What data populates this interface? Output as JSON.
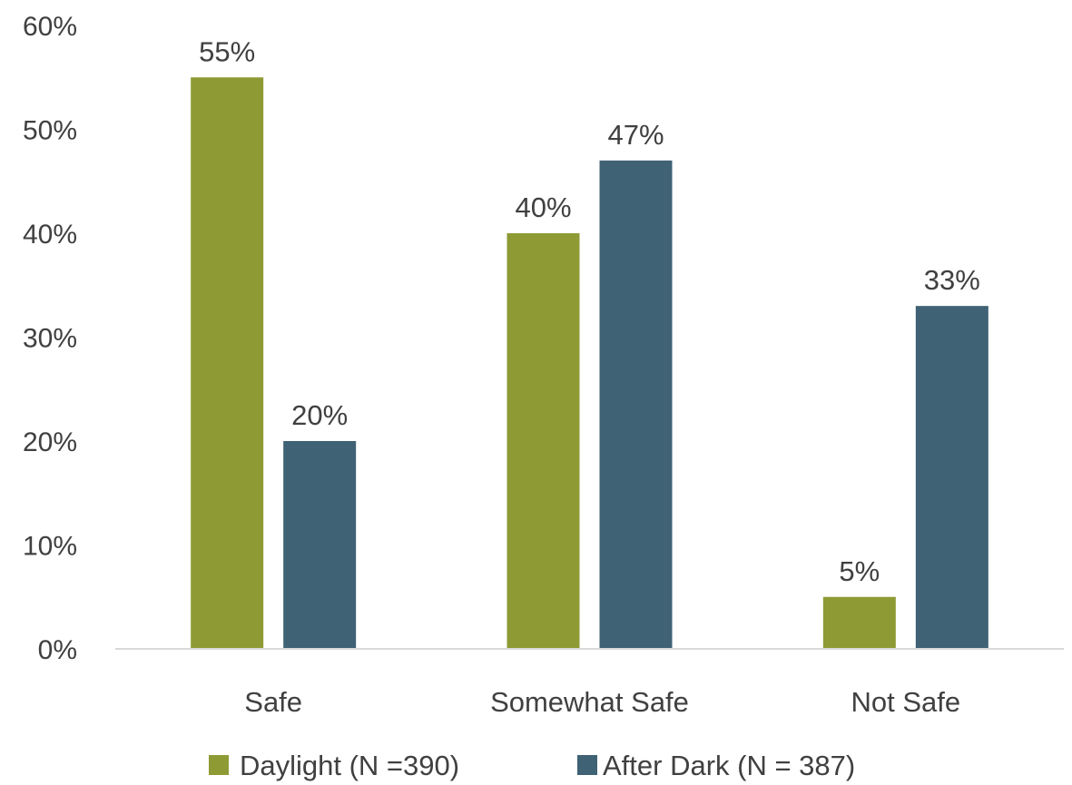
{
  "chart_data": {
    "type": "bar",
    "categories": [
      "Safe",
      "Somewhat Safe",
      "Not Safe"
    ],
    "series": [
      {
        "name": "Daylight (N =390)",
        "values": [
          55,
          40,
          5
        ],
        "color": "#8e9b35"
      },
      {
        "name": "After Dark (N = 387)",
        "values": [
          20,
          47,
          33
        ],
        "color": "#3f6274"
      }
    ],
    "value_labels": [
      [
        "55%",
        "40%",
        "5%"
      ],
      [
        "20%",
        "47%",
        "33%"
      ]
    ],
    "y_ticks": [
      0,
      10,
      20,
      30,
      40,
      50,
      60
    ],
    "y_tick_labels": [
      "0%",
      "10%",
      "20%",
      "30%",
      "40%",
      "50%",
      "60%"
    ],
    "ylim": [
      0,
      60
    ],
    "title": "",
    "xlabel": "",
    "ylabel": "",
    "grid": false,
    "legend_position": "bottom"
  }
}
